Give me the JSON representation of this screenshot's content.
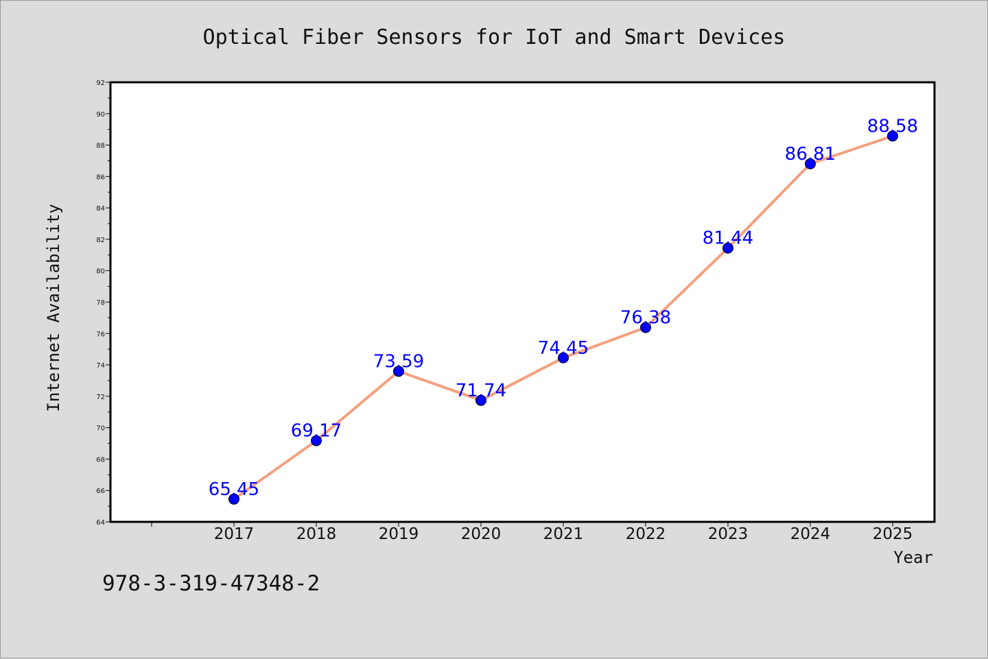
{
  "chart_data": {
    "type": "line",
    "title": "Optical Fiber Sensors for IoT and Smart Devices",
    "xlabel": "Year",
    "ylabel": "Internet Availability",
    "categories": [
      "2017",
      "2018",
      "2019",
      "2020",
      "2021",
      "2022",
      "2023",
      "2024",
      "2025"
    ],
    "series": [
      {
        "values": [
          65.45,
          69.17,
          73.59,
          71.74,
          74.45,
          76.38,
          81.44,
          86.81,
          88.58
        ]
      }
    ],
    "data_labels": [
      "65.45",
      "69.17",
      "73.59",
      "71.74",
      "74.45",
      "76.38",
      "81.44",
      "86.81",
      "88.58"
    ],
    "ylim": [
      64,
      92
    ],
    "yticks": [
      "64",
      "66",
      "68",
      "70",
      "72",
      "74",
      "76",
      "78",
      "80",
      "82",
      "84",
      "86",
      "88",
      "90",
      "92"
    ],
    "grid": false,
    "legend": "none",
    "colors": {
      "line": "#f4a07f",
      "marker": "#0000ff",
      "label": "#0000ff",
      "background": "#dcdcdc",
      "plot_background": "#ffffff"
    }
  },
  "footer": {
    "isbn": "978-3-319-47348-2"
  }
}
